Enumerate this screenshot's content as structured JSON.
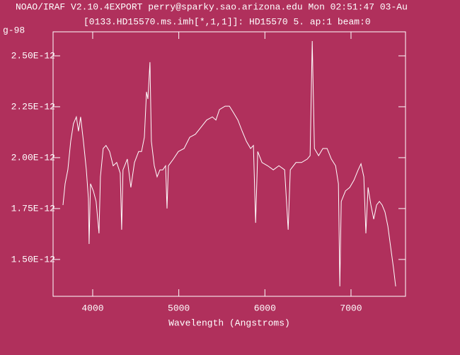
{
  "chart_data": {
    "type": "line",
    "title": "NOAO/IRAF V2.10.4EXPORT perry@sparky.sao.arizona.edu Mon 02:51:47 03-Au",
    "subtitle": "[0133.HD15570.ms.imh[*,1,1]]: HD15570 5. ap:1 beam:0",
    "y_label": "g-98",
    "x_label": "Wavelength (Angstroms)",
    "color": "#ffffff",
    "background": "#b0305c",
    "x": [
      3655,
      3680,
      3712,
      3745,
      3777,
      3810,
      3835,
      3860,
      3893,
      3926,
      3950,
      3958,
      3975,
      4008,
      4040,
      4073,
      4090,
      4122,
      4155,
      4197,
      4238,
      4279,
      4320,
      4336,
      4352,
      4402,
      4443,
      4485,
      4534,
      4567,
      4600,
      4625,
      4641,
      4665,
      4682,
      4715,
      4748,
      4781,
      4814,
      4847,
      4863,
      4880,
      4937,
      4995,
      5061,
      5127,
      5193,
      5259,
      5324,
      5390,
      5431,
      5472,
      5538,
      5588,
      5637,
      5686,
      5736,
      5785,
      5834,
      5867,
      5892,
      5917,
      5966,
      6032,
      6098,
      6163,
      6229,
      6270,
      6295,
      6361,
      6426,
      6492,
      6525,
      6550,
      6575,
      6624,
      6673,
      6722,
      6772,
      6821,
      6854,
      6870,
      6887,
      6936,
      6985,
      7034,
      7083,
      7116,
      7149,
      7173,
      7198,
      7231,
      7264,
      7297,
      7330,
      7362,
      7395,
      7428,
      7461,
      7494,
      7519
    ],
    "values": [
      1.767e-12,
      1.872e-12,
      1.941e-12,
      2.08e-12,
      2.167e-12,
      2.2e-12,
      2.13e-12,
      2.2e-12,
      2.08e-12,
      1.94e-12,
      1.8e-12,
      1.576e-12,
      1.872e-12,
      1.837e-12,
      1.785e-12,
      1.628e-12,
      1.906e-12,
      2.045e-12,
      2.06e-12,
      2.03e-12,
      1.96e-12,
      1.976e-12,
      1.924e-12,
      1.646e-12,
      1.94e-12,
      1.993e-12,
      1.854e-12,
      1.976e-12,
      2.03e-12,
      2.03e-12,
      2.1e-12,
      2.323e-12,
      2.288e-12,
      2.469e-12,
      2.08e-12,
      1.96e-12,
      1.906e-12,
      1.94e-12,
      1.94e-12,
      1.96e-12,
      1.75e-12,
      1.96e-12,
      1.993e-12,
      2.03e-12,
      2.045e-12,
      2.1e-12,
      2.115e-12,
      2.15e-12,
      2.185e-12,
      2.2e-12,
      2.185e-12,
      2.236e-12,
      2.253e-12,
      2.253e-12,
      2.22e-12,
      2.185e-12,
      2.13e-12,
      2.08e-12,
      2.045e-12,
      2.06e-12,
      1.68e-12,
      2.03e-12,
      1.976e-12,
      1.96e-12,
      1.94e-12,
      1.96e-12,
      1.94e-12,
      1.646e-12,
      1.94e-12,
      1.976e-12,
      1.976e-12,
      1.993e-12,
      2.01e-12,
      2.573e-12,
      2.045e-12,
      2.01e-12,
      2.045e-12,
      2.045e-12,
      1.993e-12,
      1.96e-12,
      1.872e-12,
      1.368e-12,
      1.785e-12,
      1.837e-12,
      1.854e-12,
      1.889e-12,
      1.94e-12,
      1.97e-12,
      1.906e-12,
      1.628e-12,
      1.854e-12,
      1.767e-12,
      1.698e-12,
      1.767e-12,
      1.785e-12,
      1.767e-12,
      1.733e-12,
      1.663e-12,
      1.559e-12,
      1.455e-12,
      1.368e-12
    ],
    "xlim": [
      3540,
      7633
    ],
    "ylim": [
      1.319e-12,
      2.618e-12
    ],
    "xticks": [
      4000,
      5000,
      6000,
      7000
    ],
    "yticks": [
      {
        "value": 1.5e-12,
        "label": "1.50E-12"
      },
      {
        "value": 1.75e-12,
        "label": "1.75E-12"
      },
      {
        "value": 2e-12,
        "label": "2.00E-12"
      },
      {
        "value": 2.25e-12,
        "label": "2.25E-12"
      },
      {
        "value": 2.5e-12,
        "label": "2.50E-12"
      }
    ]
  }
}
